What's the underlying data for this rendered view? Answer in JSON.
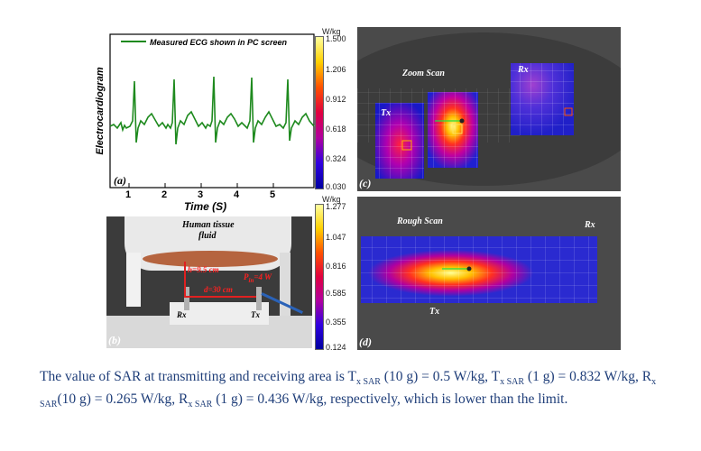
{
  "panel_a": {
    "label": "(a)",
    "legend": "Measured ECG shown in PC screen",
    "ylabel": "Electrocardiogram",
    "xlabel": "Time (S)",
    "x_ticks": [
      "1",
      "2",
      "3",
      "4",
      "5"
    ],
    "line_color": "#1e8a1e"
  },
  "panel_b": {
    "label": "(b)",
    "fluid_label_1": "Human tissue",
    "fluid_label_2": "fluid",
    "h_label": "h=9.5 cm",
    "d_label": "d=30 cm",
    "p_label": "P",
    "p_sub": "in",
    "p_value": "=4 W",
    "rx_label": "Rx",
    "tx_label": "Tx"
  },
  "scale_c": {
    "unit_1": "W/kg",
    "ticks": [
      "1.500",
      "1.206",
      "0.912",
      "0.618",
      "0.324",
      "0.030"
    ]
  },
  "scale_d": {
    "unit_1": "W/kg",
    "ticks": [
      "1.277",
      "1.047",
      "0.816",
      "0.585",
      "0.355",
      "0.124"
    ]
  },
  "panel_c": {
    "label": "(c)",
    "title": "Zoom Scan",
    "tx": "Tx",
    "rx": "Rx"
  },
  "panel_d": {
    "label": "(d)",
    "title": "Rough Scan",
    "tx": "Tx",
    "rx": "Rx"
  },
  "caption": {
    "t1": "The value of SAR at transmitting and receiving area is T",
    "s1": "x SAR",
    "t2": " (10 g) = 0.5 W/kg, T",
    "s2": "x SAR",
    "t3": " (1 g) = 0.832 W/kg, R",
    "s3": "x SAR",
    "t4": "(10 g) = 0.265 W/kg, R",
    "s4": "x SAR",
    "t5": " (1 g) = 0.436 W/kg, respectively, which is lower than the limit."
  }
}
